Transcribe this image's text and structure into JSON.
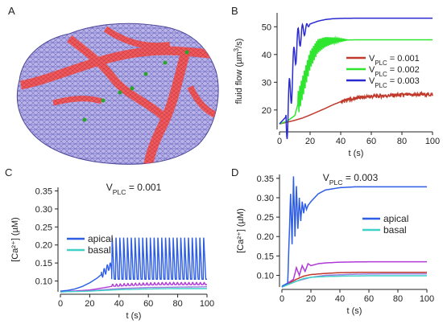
{
  "panels": {
    "a": "A",
    "b": "B",
    "c": "C",
    "d": "D"
  },
  "panel_a": {
    "type": "3D cell surface mesh",
    "colors": {
      "mesh_fill": "#b9b3e6",
      "mesh_line": "#5a56b8",
      "apical_region": "#e8434a",
      "markers": "#2aa52a"
    }
  },
  "chart_data": [
    {
      "panel": "B",
      "type": "line",
      "xlabel": "t (s)",
      "ylabel": "fluid flow (µm³/s)",
      "ylabel_parts": {
        "main": "fluid flow (µm",
        "sup": "3",
        "end": "/s)"
      },
      "xlim": [
        0,
        100
      ],
      "ylim": [
        13,
        55
      ],
      "xticks": [
        "0",
        "20",
        "40",
        "60",
        "80",
        "100"
      ],
      "yticks": [
        "20",
        "30",
        "40",
        "50"
      ],
      "legend_position": "middle-right",
      "series": [
        {
          "name": "VPLC = 0.001",
          "label_parts": {
            "v": "V",
            "sub": "PLC",
            "rest": " = 0.001"
          },
          "color": "#c0392b",
          "x": [
            0,
            5,
            10,
            15,
            20,
            25,
            30,
            35,
            40,
            50,
            60,
            70,
            80,
            90,
            100
          ],
          "y": [
            15,
            15.6,
            16.3,
            17.1,
            18.2,
            19.4,
            20.6,
            21.9,
            23,
            24.3,
            24.9,
            25.2,
            25.4,
            25.5,
            25.6
          ]
        },
        {
          "name": "VPLC = 0.002",
          "label_parts": {
            "v": "V",
            "sub": "PLC",
            "rest": " = 0.002"
          },
          "color": "#2ee62e",
          "x": [
            0,
            5,
            10,
            15,
            20,
            25,
            30,
            35,
            40,
            50,
            60,
            70,
            80,
            90,
            100
          ],
          "y": [
            15,
            16,
            18,
            28,
            38,
            43,
            44.5,
            45,
            45.2,
            45.3,
            45.3,
            45.3,
            45.3,
            45.3,
            45.3
          ]
        },
        {
          "name": "VPLC = 0.003",
          "label_parts": {
            "v": "V",
            "sub": "PLC",
            "rest": " = 0.003"
          },
          "color": "#2a2ad0",
          "x": [
            0,
            5,
            8,
            10,
            12,
            15,
            18,
            20,
            25,
            30,
            35,
            40,
            50,
            60,
            70,
            80,
            90,
            100
          ],
          "y": [
            15,
            18,
            30,
            40,
            45,
            48,
            50,
            51,
            52,
            52.6,
            52.9,
            53,
            53.1,
            53.1,
            53.1,
            53.1,
            53.1,
            53.1
          ]
        }
      ]
    },
    {
      "panel": "C",
      "type": "line",
      "title": "VPLC = 0.001",
      "title_parts": {
        "v": "V",
        "sub": "PLC",
        "rest": " = 0.001"
      },
      "xlabel": "t (s)",
      "ylabel": "[Ca²⁺] (µM)",
      "xlim": [
        0,
        100
      ],
      "ylim": [
        0.07,
        0.36
      ],
      "xticks": [
        "0",
        "20",
        "40",
        "60",
        "80",
        "100"
      ],
      "yticks": [
        "0.10",
        "0.15",
        "0.20",
        "0.25",
        "0.30",
        "0.35"
      ],
      "legend_position": "left",
      "oscillation": {
        "start": 35,
        "period": 2.6,
        "peak": 0.225,
        "trough": 0.105
      },
      "series": [
        {
          "name": "apical",
          "color": "#2e5ee6",
          "x": [
            0,
            5,
            10,
            15,
            20,
            25,
            30,
            33
          ],
          "y": [
            0.072,
            0.074,
            0.078,
            0.085,
            0.095,
            0.108,
            0.125,
            0.14
          ]
        },
        {
          "name": "basal",
          "color": "#3fd0c8",
          "x": [
            0,
            20,
            40,
            60,
            80,
            100
          ],
          "y": [
            0.07,
            0.072,
            0.076,
            0.078,
            0.079,
            0.079
          ]
        },
        {
          "name": "",
          "color": "#b03ad8",
          "x": [
            0,
            20,
            35,
            50,
            70,
            100
          ],
          "y": [
            0.07,
            0.075,
            0.085,
            0.088,
            0.09,
            0.09
          ]
        },
        {
          "name": "",
          "color": "#9a7ee0",
          "x": [
            0,
            20,
            40,
            60,
            80,
            100
          ],
          "y": [
            0.07,
            0.073,
            0.079,
            0.082,
            0.083,
            0.084
          ]
        }
      ]
    },
    {
      "panel": "D",
      "type": "line",
      "title": "VPLC = 0.003",
      "title_parts": {
        "v": "V",
        "sub": "PLC",
        "rest": " = 0.003"
      },
      "xlabel": "t (s)",
      "ylabel": "[Ca²⁺] (µM)",
      "xlim": [
        0,
        100
      ],
      "ylim": [
        0.07,
        0.36
      ],
      "xticks": [
        "0",
        "20",
        "40",
        "60",
        "80",
        "100"
      ],
      "yticks": [
        "0.10",
        "0.15",
        "0.20",
        "0.25",
        "0.30",
        "0.35"
      ],
      "legend_position": "right",
      "series": [
        {
          "name": "apical",
          "color": "#2e5ee6",
          "x": [
            0,
            4,
            6,
            7,
            8,
            9,
            10,
            11,
            12,
            13,
            14,
            15,
            16,
            17,
            18,
            20,
            25,
            30,
            40,
            50,
            60,
            70,
            80,
            90,
            100
          ],
          "y": [
            0.072,
            0.08,
            0.31,
            0.18,
            0.355,
            0.2,
            0.33,
            0.22,
            0.3,
            0.24,
            0.29,
            0.26,
            0.285,
            0.27,
            0.28,
            0.29,
            0.31,
            0.32,
            0.326,
            0.328,
            0.328,
            0.328,
            0.328,
            0.328,
            0.328
          ]
        },
        {
          "name": "basal",
          "color": "#3fd0c8",
          "x": [
            0,
            10,
            15,
            20,
            30,
            40,
            60,
            80,
            100
          ],
          "y": [
            0.07,
            0.085,
            0.092,
            0.095,
            0.097,
            0.098,
            0.099,
            0.099,
            0.099
          ]
        },
        {
          "name": "",
          "color": "#b03ad8",
          "x": [
            0,
            8,
            10,
            12,
            14,
            16,
            18,
            20,
            25,
            30,
            40,
            60,
            80,
            100
          ],
          "y": [
            0.07,
            0.09,
            0.12,
            0.1,
            0.125,
            0.11,
            0.13,
            0.125,
            0.13,
            0.132,
            0.134,
            0.135,
            0.135,
            0.135
          ]
        },
        {
          "name": "",
          "color": "#c0392b",
          "x": [
            0,
            10,
            15,
            20,
            30,
            40,
            60,
            80,
            100
          ],
          "y": [
            0.07,
            0.09,
            0.098,
            0.102,
            0.105,
            0.107,
            0.108,
            0.108,
            0.108
          ]
        },
        {
          "name": "",
          "color": "#9a7ee0",
          "x": [
            0,
            10,
            20,
            30,
            50,
            70,
            100
          ],
          "y": [
            0.07,
            0.085,
            0.095,
            0.1,
            0.103,
            0.104,
            0.104
          ]
        }
      ]
    }
  ]
}
